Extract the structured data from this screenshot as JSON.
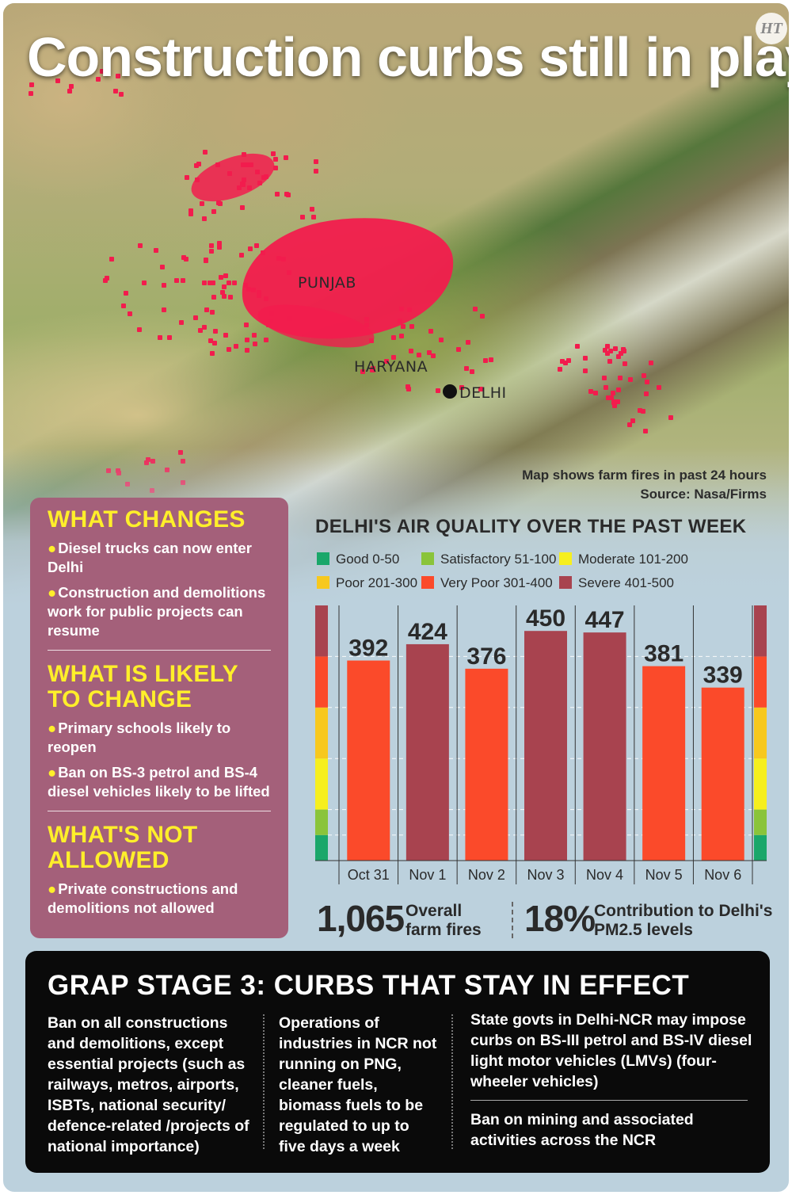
{
  "title": "Construction curbs still in play",
  "logo_text": "HT",
  "map": {
    "labels": {
      "punjab": "PUNJAB",
      "haryana": "HARYANA",
      "delhi": "DELHI"
    },
    "caption_line1": "Map shows farm fires in past 24 hours",
    "caption_line2": "Source: Nasa/Firms",
    "fire_color": "#f21c4d"
  },
  "left_panel": {
    "color": "#a4607a",
    "heading_color": "#ffef2a",
    "sections": [
      {
        "heading": "WHAT CHANGES",
        "items": [
          "Diesel trucks can now enter Delhi",
          "Construction and demolitions work for public projects can resume"
        ]
      },
      {
        "heading": "WHAT IS LIKELY TO CHANGE",
        "items": [
          "Primary schools likely to reopen",
          "Ban on BS-3 petrol and BS-4 diesel vehicles likely to be lifted"
        ]
      },
      {
        "heading": "WHAT'S NOT ALLOWED",
        "items": [
          "Private constructions and demolitions not allowed"
        ]
      }
    ]
  },
  "chart_data": {
    "type": "bar",
    "title": "DELHI'S AIR QUALITY OVER THE PAST WEEK",
    "categories": [
      "Oct 31",
      "Nov 1",
      "Nov 2",
      "Nov 3",
      "Nov 4",
      "Nov 5",
      "Nov 6"
    ],
    "values": [
      392,
      424,
      376,
      450,
      447,
      381,
      339
    ],
    "ylim": [
      0,
      500
    ],
    "grid": true,
    "legend_position": "top",
    "aqi_bands": [
      {
        "label": "Good 0-50",
        "min": 0,
        "max": 50,
        "color": "#1aa76a"
      },
      {
        "label": "Satisfactory 51-100",
        "min": 51,
        "max": 100,
        "color": "#8ac43a"
      },
      {
        "label": "Moderate 101-200",
        "min": 101,
        "max": 200,
        "color": "#f6ef1e"
      },
      {
        "label": "Poor 201-300",
        "min": 201,
        "max": 300,
        "color": "#f7c81e"
      },
      {
        "label": "Very Poor 301-400",
        "min": 301,
        "max": 400,
        "color": "#fb4a2a"
      },
      {
        "label": "Severe 401-500",
        "min": 401,
        "max": 500,
        "color": "#a8434f"
      }
    ]
  },
  "stats": {
    "farm_fires_value": "1,065",
    "farm_fires_label": "Overall farm fires",
    "pm_value": "18%",
    "pm_label": "Contribution to Delhi's PM2.5 levels"
  },
  "bottom_panel": {
    "title": "GRAP STAGE 3: CURBS THAT STAY IN EFFECT",
    "col1": "Ban on all constructions and demolitions, except essential projects (such as railways, metros, airports, ISBTs, national security/ defence-related /projects of national importance)",
    "col2": "Operations of industries in NCR not running on PNG, cleaner fuels, biomass fuels to be regulated to up to five days a week",
    "col3a": "State govts in Delhi-NCR may impose curbs on BS-III petrol and BS-IV diesel light motor vehicles (LMVs) (four-wheeler vehicles)",
    "col3b": "Ban on mining and associated activities across the NCR"
  }
}
